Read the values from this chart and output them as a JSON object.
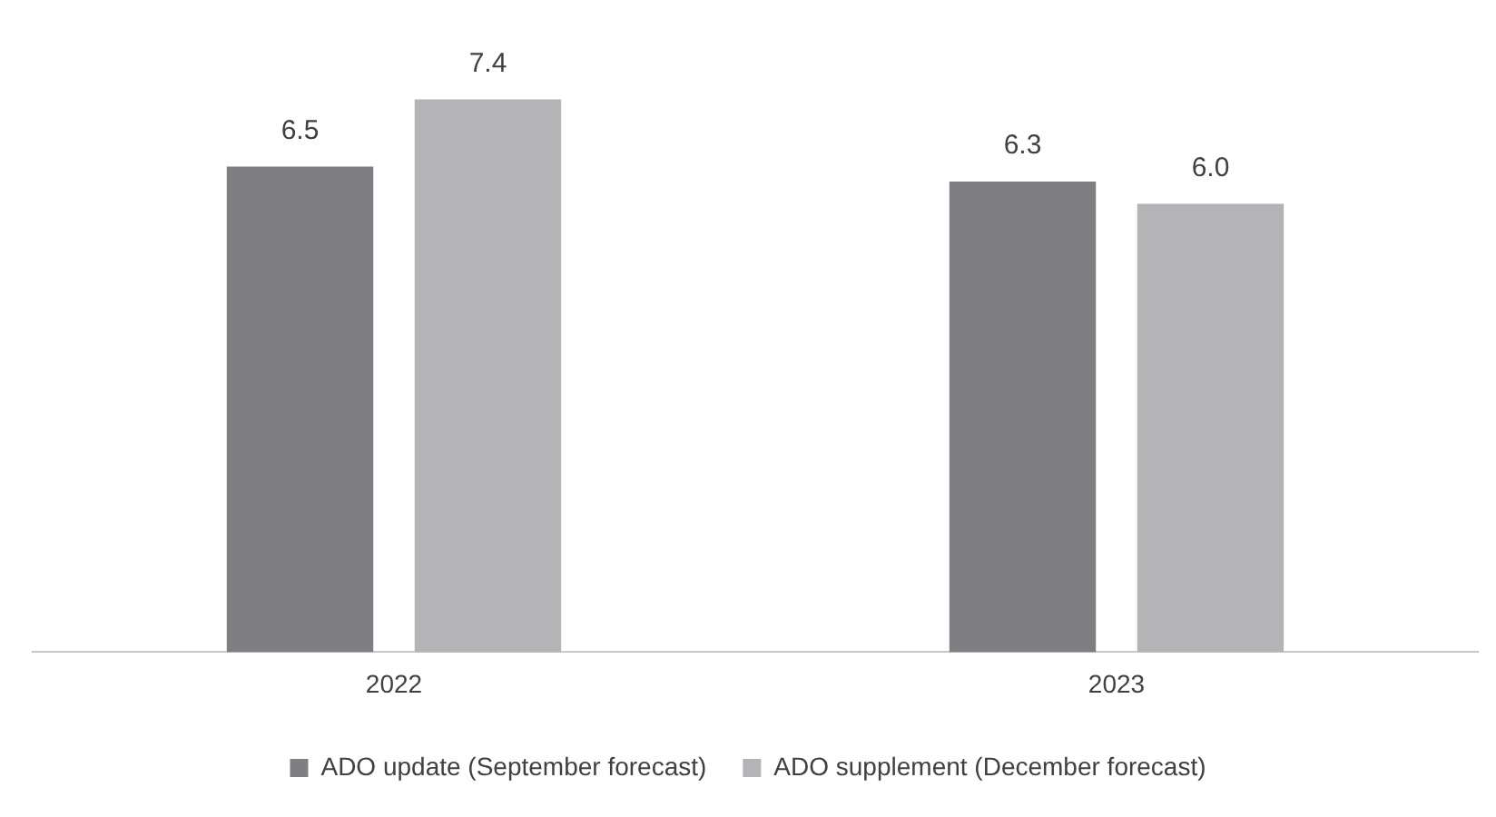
{
  "chart_data": {
    "type": "bar",
    "categories": [
      "2022",
      "2023"
    ],
    "series": [
      {
        "name": "ADO update (September forecast)",
        "color": "#7f7f83",
        "values": [
          6.5,
          6.3
        ],
        "value_labels": [
          "6.5",
          "6.3"
        ]
      },
      {
        "name": "ADO supplement (December forecast)",
        "color": "#b4b4b6",
        "values": [
          7.4,
          6.0
        ],
        "value_labels": [
          "7.4",
          "6.0"
        ]
      }
    ],
    "legend": "bottom",
    "grid": false
  }
}
